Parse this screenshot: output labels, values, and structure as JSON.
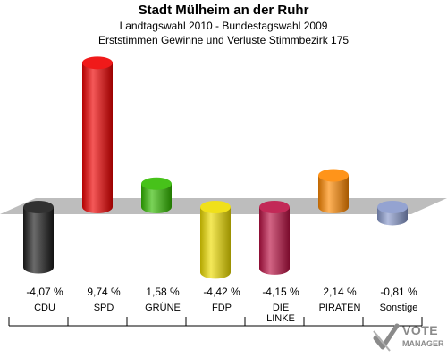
{
  "header": {
    "title": "Stadt Mülheim an der Ruhr",
    "subtitle1": "Landtagswahl 2010 - Bundestagswahl 2009",
    "subtitle2": "Erststimmen Gewinne und Verluste Stimmbezirk 175"
  },
  "logo": {
    "line1": "VOTE",
    "line2": "MANAGER"
  },
  "chart_data": {
    "type": "bar",
    "categories": [
      "CDU",
      "SPD",
      "GRÜNE",
      "FDP",
      "DIE LINKE",
      "PIRATEN",
      "Sonstige"
    ],
    "category_labels": [
      [
        "CDU"
      ],
      [
        "SPD"
      ],
      [
        "GRÜNE"
      ],
      [
        "FDP"
      ],
      [
        "DIE",
        "LINKE"
      ],
      [
        "PIRATEN"
      ],
      [
        "Sonstige"
      ]
    ],
    "values": [
      -4.07,
      9.74,
      1.58,
      -4.42,
      -4.15,
      2.14,
      -0.81
    ],
    "value_labels": [
      "-4,07 %",
      "9,74 %",
      "1,58 %",
      "-4,42 %",
      "-4,15 %",
      "2,14 %",
      "-0,81 %"
    ],
    "colors": [
      "#1a1a1a",
      "#ee0000",
      "#33bb00",
      "#eedd00",
      "#bb1144",
      "#ff8800",
      "#8899cc"
    ],
    "title": "Stadt Mülheim an der Ruhr",
    "xlabel": "",
    "ylabel": ""
  }
}
